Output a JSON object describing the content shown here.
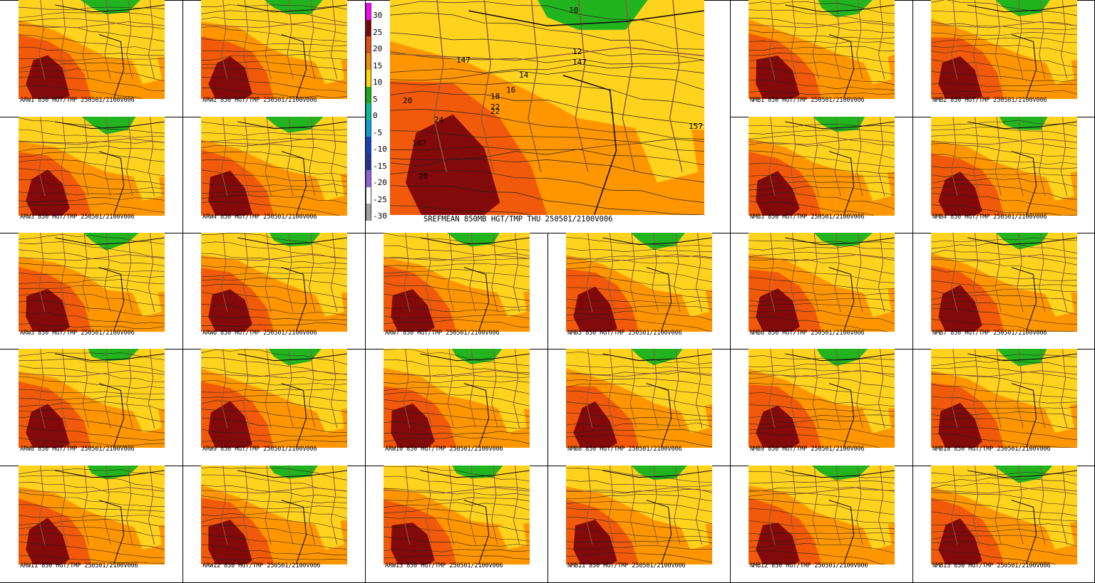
{
  "main": {
    "caption": "SREFMEAN 850MB HGT/TMP THU 250501/2100V006",
    "labels": [
      "10",
      "12",
      "147",
      "14",
      "147",
      "16",
      "18",
      "22",
      "20",
      "24",
      "20",
      "22",
      "147",
      "157"
    ]
  },
  "colorbar": {
    "levels": [
      {
        "label": "30",
        "color": "#ff00ff"
      },
      {
        "label": "25",
        "color": "#800000"
      },
      {
        "label": "20",
        "color": "#e0500a"
      },
      {
        "label": "15",
        "color": "#f08c00"
      },
      {
        "label": "10",
        "color": "#ffd700"
      },
      {
        "label": "5",
        "color": "#10b010"
      },
      {
        "label": "0",
        "color": "#00c0a0"
      },
      {
        "label": "-5",
        "color": "#00a0e0"
      },
      {
        "label": "-10",
        "color": "#1040c0"
      },
      {
        "label": "-15",
        "color": "#2030a0"
      },
      {
        "label": "-20",
        "color": "#9060e0"
      },
      {
        "label": "-25",
        "color": "#ffffff"
      },
      {
        "label": "-30",
        "color": "#a0a0a0"
      }
    ]
  },
  "palette": {
    "green": "#22b41e",
    "yellow": "#ffd21e",
    "orange": "#ff9600",
    "orangered": "#f05a0a",
    "darkred": "#820a0a",
    "brown": "#8c5a3c"
  },
  "members": [
    {
      "caption": "ARW1 850 HGT/TMP 250501/2100V006"
    },
    {
      "caption": "ARW2 850 HGT/TMP 250501/2100V006"
    },
    {
      "caption": "NMB1 850 HGT/TMP 250501/2100V006"
    },
    {
      "caption": "NMB2 850 HGT/TMP 250501/2100V006"
    },
    {
      "caption": "ARW3 850 HGT/TMP 250501/2100V006"
    },
    {
      "caption": "ARW4 850 HGT/TMP 250501/2100V006"
    },
    {
      "caption": "NMB3 850 HGT/TMP 250501/2100V006"
    },
    {
      "caption": "NMB4 850 HGT/TMP 250501/2100V006"
    },
    {
      "caption": "ARW5 850 HGT/TMP 250501/2100V006"
    },
    {
      "caption": "ARW6 850 HGT/TMP 250501/2100V006"
    },
    {
      "caption": "ARW7 850 HGT/TMP 250501/2100V006"
    },
    {
      "caption": "NMB5 850 HGT/TMP 250501/2100V006"
    },
    {
      "caption": "NMB6 850 HGT/TMP 250501/2100V006"
    },
    {
      "caption": "NMB7 850 HGT/TMP 250501/2100V006"
    },
    {
      "caption": "ARW8 850 HGT/TMP 250501/2100V006"
    },
    {
      "caption": "ARW9 850 HGT/TMP 250501/2100V006"
    },
    {
      "caption": "ARW10 850 HGT/TMP 250501/2100V006"
    },
    {
      "caption": "NMB8 850 HGT/TMP 250501/2100V006"
    },
    {
      "caption": "NMB9 850 HGT/TMP 250501/2100V006"
    },
    {
      "caption": "NMB10 850 HGT/TMP 250501/2100V006"
    },
    {
      "caption": "ARW11 850 HGT/TMP 250501/2100V006"
    },
    {
      "caption": "ARW12 850 HGT/TMP 250501/2100V006"
    },
    {
      "caption": "ARW13 850 HGT/TMP 250501/2100V006"
    },
    {
      "caption": "NMB11 850 HGT/TMP 250501/2100V006"
    },
    {
      "caption": "NMB12 850 HGT/TMP 250501/2100V006"
    },
    {
      "caption": "NMB13 850 HGT/TMP 250501/2100V006"
    }
  ]
}
